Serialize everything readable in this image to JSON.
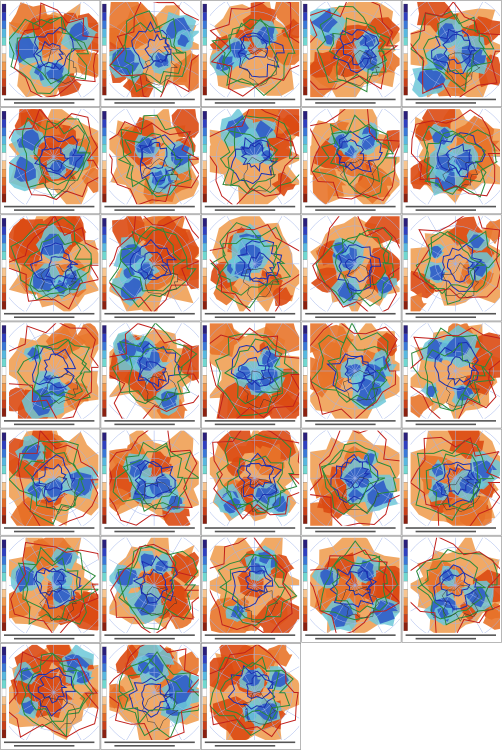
{
  "figure": {
    "rows": 7,
    "columns": 5,
    "panels": 33
  }
}
